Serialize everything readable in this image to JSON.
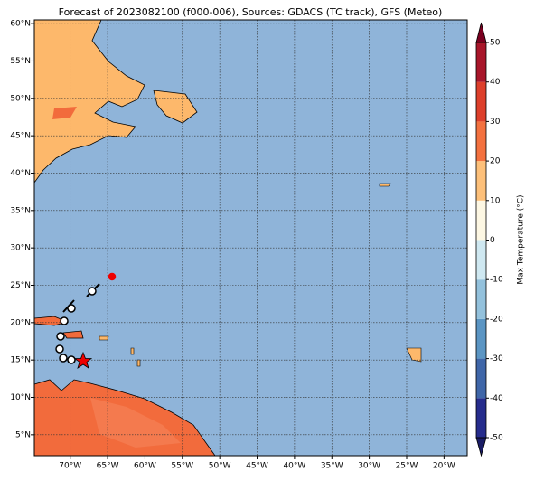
{
  "map": {
    "title": "Forecast of 2023082100 (f000-006), Sources: GDACS (TC track), GFS (Meteo)",
    "lon_lim": [
      -74.8,
      -16.9
    ],
    "lat_lim": [
      2.2,
      60.5
    ],
    "lat_ticks": [
      {
        "value": 5,
        "label": "5°N"
      },
      {
        "value": 10,
        "label": "10°N"
      },
      {
        "value": 15,
        "label": "15°N"
      },
      {
        "value": 20,
        "label": "20°N"
      },
      {
        "value": 25,
        "label": "25°N"
      },
      {
        "value": 30,
        "label": "30°N"
      },
      {
        "value": 35,
        "label": "35°N"
      },
      {
        "value": 40,
        "label": "40°N"
      },
      {
        "value": 45,
        "label": "45°N"
      },
      {
        "value": 50,
        "label": "50°N"
      },
      {
        "value": 55,
        "label": "55°N"
      },
      {
        "value": 60,
        "label": "60°N"
      }
    ],
    "lon_ticks": [
      {
        "value": -70,
        "label": "70°W"
      },
      {
        "value": -65,
        "label": "65°W"
      },
      {
        "value": -60,
        "label": "60°W"
      },
      {
        "value": -55,
        "label": "55°W"
      },
      {
        "value": -50,
        "label": "50°W"
      },
      {
        "value": -45,
        "label": "45°W"
      },
      {
        "value": -40,
        "label": "40°W"
      },
      {
        "value": -35,
        "label": "35°W"
      },
      {
        "value": -30,
        "label": "30°W"
      },
      {
        "value": -25,
        "label": "25°W"
      },
      {
        "value": -20,
        "label": "20°W"
      }
    ],
    "grid": true,
    "colorbar": {
      "label": "Max Temperature (°C)",
      "lim": [
        -50,
        50
      ],
      "ticks": [
        -50,
        -40,
        -30,
        -20,
        -10,
        0,
        10,
        20,
        30,
        40,
        50
      ],
      "colors": [
        "#262c8c",
        "#3f66a8",
        "#5b95c3",
        "#93c1dc",
        "#cfe8f1",
        "#fdf7e3",
        "#fdc07a",
        "#f3713f",
        "#dd3f2b",
        "#a8162a"
      ],
      "under_color": "#1a1c66",
      "over_color": "#7a0020"
    }
  }
}
